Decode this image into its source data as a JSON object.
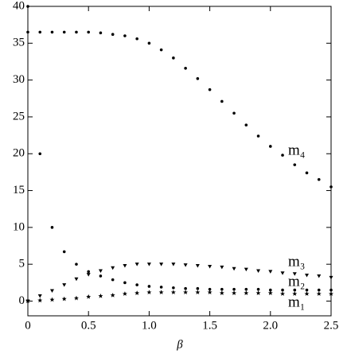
{
  "chart_data": {
    "type": "scatter",
    "x_label": "β",
    "xlim": [
      0,
      2.5
    ],
    "ylim": [
      -2,
      40
    ],
    "xticks": [
      0,
      0.5,
      {
        "value": 1,
        "label": "1.0"
      },
      1.5,
      {
        "value": 2,
        "label": "2.0"
      },
      2.5
    ],
    "yticks": [
      0,
      5,
      10,
      15,
      20,
      25,
      30,
      35,
      40
    ],
    "x": [
      0,
      0.1,
      0.2,
      0.3,
      0.4,
      0.5,
      0.6,
      0.7,
      0.8,
      0.9,
      1.0,
      1.1,
      1.2,
      1.3,
      1.4,
      1.5,
      1.6,
      1.7,
      1.8,
      1.9,
      2.0,
      2.1,
      2.2,
      2.3,
      2.4,
      2.5
    ],
    "series": [
      {
        "name": "m₄",
        "color": "#000000",
        "marker": "dot",
        "values": [
          36.5,
          36.5,
          36.5,
          36.5,
          36.5,
          36.5,
          36.4,
          36.2,
          36.0,
          35.6,
          35.0,
          34.1,
          33.0,
          31.6,
          30.2,
          28.7,
          27.1,
          25.5,
          23.9,
          22.4,
          21.0,
          19.8,
          18.5,
          17.4,
          16.5,
          15.5
        ]
      },
      {
        "name": "m₃",
        "color": "#000000",
        "marker": "triangle",
        "values": [
          0,
          0.7,
          1.4,
          2.2,
          3.0,
          3.6,
          4.1,
          4.5,
          4.8,
          5.0,
          5.0,
          5.0,
          5.0,
          4.9,
          4.8,
          4.7,
          4.6,
          4.4,
          4.3,
          4.1,
          4.0,
          3.8,
          3.7,
          3.5,
          3.4,
          3.2
        ]
      },
      {
        "name": "m₂",
        "color": "#000000",
        "marker": "dot",
        "values": [
          40,
          20,
          10,
          6.7,
          5.0,
          4.0,
          3.4,
          2.9,
          2.5,
          2.2,
          2.0,
          1.9,
          1.8,
          1.7,
          1.7,
          1.6,
          1.6,
          1.6,
          1.6,
          1.6,
          1.5,
          1.5,
          1.5,
          1.5,
          1.5,
          1.5
        ]
      },
      {
        "name": "m₁",
        "color": "#000000",
        "marker": "star",
        "values": [
          0,
          0.1,
          0.2,
          0.3,
          0.4,
          0.6,
          0.7,
          0.8,
          1.0,
          1.1,
          1.2,
          1.2,
          1.2,
          1.2,
          1.2,
          1.2,
          1.1,
          1.1,
          1.1,
          1.1,
          1.1,
          1.0,
          1.0,
          1.0,
          1.0,
          1.0
        ]
      }
    ]
  }
}
